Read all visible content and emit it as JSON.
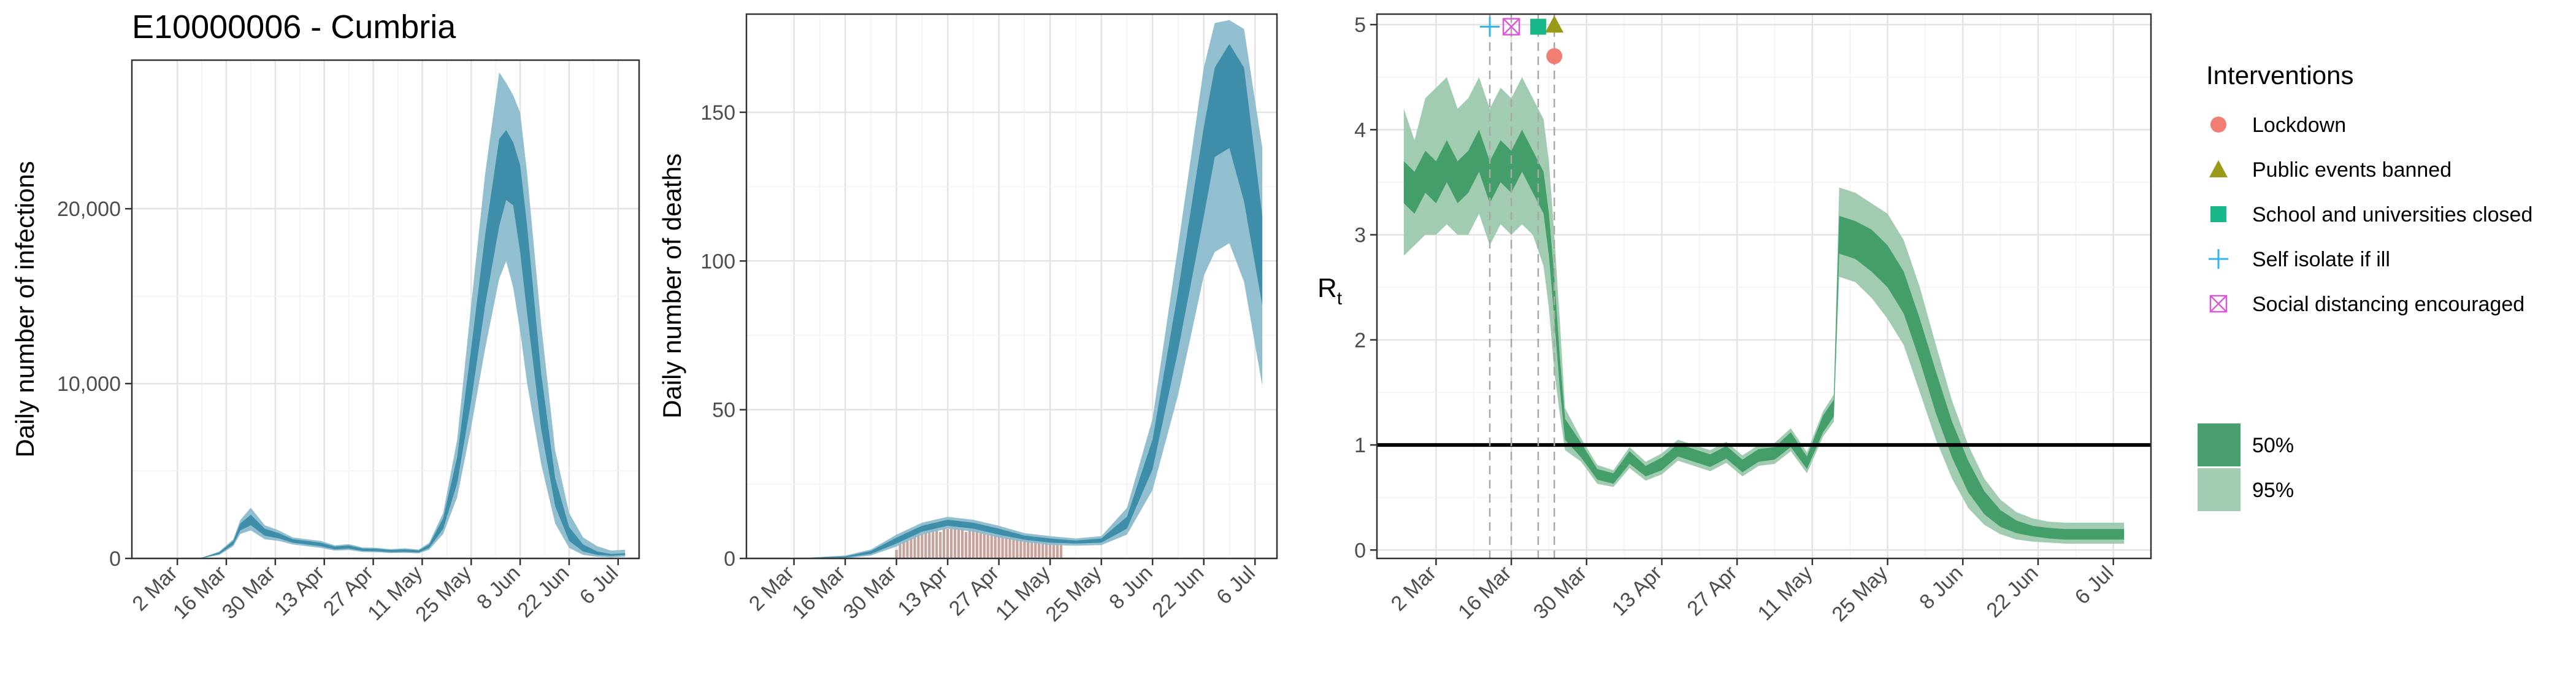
{
  "figure_title": "E10000006 - Cumbria",
  "colors": {
    "infections_dark": "#3a8aa6",
    "infections_light": "#8cbccd",
    "deaths_observed": "#c9a39b",
    "rt_dark": "#3f9b66",
    "rt_light": "#9cc9ad",
    "lockdown": "#f07e73",
    "public_events": "#9a9a18",
    "schools": "#18b88a",
    "self_isolate": "#33b5e5",
    "social_distancing": "#d85ad8"
  },
  "chart_data": [
    {
      "type": "area",
      "name": "infections",
      "ylabel": "Daily number of infections",
      "xlabel": "",
      "x_ticks": [
        "2 Mar",
        "16 Mar",
        "30 Mar",
        "13 Apr",
        "27 Apr",
        "11 May",
        "25 May",
        "8 Jun",
        "22 Jun",
        "6 Jul"
      ],
      "y_ticks": [
        "0",
        "10,000",
        "20,000"
      ],
      "ylim": [
        0,
        28500
      ],
      "grid": true,
      "x": [
        "2020-03-02",
        "2020-03-09",
        "2020-03-14",
        "2020-03-18",
        "2020-03-20",
        "2020-03-23",
        "2020-03-27",
        "2020-03-31",
        "2020-04-04",
        "2020-04-08",
        "2020-04-12",
        "2020-04-16",
        "2020-04-20",
        "2020-04-24",
        "2020-04-28",
        "2020-05-02",
        "2020-05-06",
        "2020-05-10",
        "2020-05-13",
        "2020-05-17",
        "2020-05-21",
        "2020-05-25",
        "2020-05-29",
        "2020-06-02",
        "2020-06-04",
        "2020-06-06",
        "2020-06-08",
        "2020-06-10",
        "2020-06-14",
        "2020-06-18",
        "2020-06-22",
        "2020-06-26",
        "2020-06-30",
        "2020-07-04",
        "2020-07-08"
      ],
      "median": [
        0,
        30,
        300,
        900,
        1800,
        2200,
        1500,
        1300,
        1000,
        900,
        800,
        600,
        650,
        500,
        480,
        420,
        450,
        400,
        700,
        2000,
        5000,
        10500,
        16500,
        21500,
        22500,
        22000,
        20000,
        16500,
        9000,
        3800,
        1400,
        600,
        300,
        200,
        250
      ],
      "ci50": [
        [
          0,
          0
        ],
        [
          20,
          40
        ],
        [
          250,
          350
        ],
        [
          800,
          1000
        ],
        [
          1600,
          2000
        ],
        [
          1900,
          2500
        ],
        [
          1300,
          1700
        ],
        [
          1150,
          1450
        ],
        [
          900,
          1100
        ],
        [
          800,
          1000
        ],
        [
          700,
          900
        ],
        [
          520,
          680
        ],
        [
          560,
          740
        ],
        [
          430,
          570
        ],
        [
          410,
          550
        ],
        [
          360,
          480
        ],
        [
          380,
          520
        ],
        [
          340,
          460
        ],
        [
          600,
          800
        ],
        [
          1700,
          2300
        ],
        [
          4300,
          5800
        ],
        [
          9000,
          12000
        ],
        [
          14500,
          18500
        ],
        [
          19000,
          24000
        ],
        [
          20500,
          24500
        ],
        [
          20200,
          23800
        ],
        [
          17500,
          22500
        ],
        [
          14000,
          19000
        ],
        [
          7400,
          10600
        ],
        [
          3000,
          4600
        ],
        [
          1000,
          1800
        ],
        [
          400,
          800
        ],
        [
          200,
          400
        ],
        [
          150,
          250
        ],
        [
          200,
          300
        ]
      ],
      "ci95": [
        [
          0,
          0
        ],
        [
          10,
          50
        ],
        [
          200,
          400
        ],
        [
          700,
          1100
        ],
        [
          1400,
          2200
        ],
        [
          1600,
          2900
        ],
        [
          1100,
          1900
        ],
        [
          1000,
          1600
        ],
        [
          800,
          1200
        ],
        [
          700,
          1100
        ],
        [
          600,
          1000
        ],
        [
          450,
          750
        ],
        [
          480,
          820
        ],
        [
          370,
          630
        ],
        [
          350,
          610
        ],
        [
          310,
          530
        ],
        [
          320,
          580
        ],
        [
          290,
          510
        ],
        [
          500,
          900
        ],
        [
          1400,
          2600
        ],
        [
          3500,
          6800
        ],
        [
          7500,
          14500
        ],
        [
          12000,
          22000
        ],
        [
          16000,
          27800
        ],
        [
          17000,
          27200
        ],
        [
          15500,
          26500
        ],
        [
          13000,
          25500
        ],
        [
          10000,
          22000
        ],
        [
          5400,
          13400
        ],
        [
          2000,
          6200
        ],
        [
          600,
          2600
        ],
        [
          200,
          1200
        ],
        [
          100,
          700
        ],
        [
          60,
          450
        ],
        [
          100,
          500
        ]
      ]
    },
    {
      "type": "area",
      "name": "deaths",
      "ylabel": "Daily number of deaths",
      "xlabel": "",
      "x_ticks": [
        "2 Mar",
        "16 Mar",
        "30 Mar",
        "13 Apr",
        "27 Apr",
        "11 May",
        "25 May",
        "8 Jun",
        "22 Jun",
        "6 Jul"
      ],
      "y_ticks": [
        "0",
        "50",
        "100",
        "150"
      ],
      "ylim": [
        0,
        183
      ],
      "grid": true,
      "x": [
        "2020-03-02",
        "2020-03-16",
        "2020-03-23",
        "2020-03-30",
        "2020-04-06",
        "2020-04-13",
        "2020-04-20",
        "2020-04-27",
        "2020-05-04",
        "2020-05-11",
        "2020-05-18",
        "2020-05-25",
        "2020-06-01",
        "2020-06-08",
        "2020-06-15",
        "2020-06-22",
        "2020-06-25",
        "2020-06-29",
        "2020-07-03",
        "2020-07-08"
      ],
      "median": [
        0,
        0.5,
        2,
        6,
        10,
        12,
        11,
        9,
        7,
        6,
        5.5,
        6,
        12,
        35,
        80,
        130,
        151,
        155,
        145,
        100
      ],
      "ci50": [
        [
          0,
          0
        ],
        [
          0.3,
          0.7
        ],
        [
          1.5,
          2.5
        ],
        [
          5,
          7
        ],
        [
          9,
          11
        ],
        [
          11,
          13
        ],
        [
          10,
          12
        ],
        [
          8,
          10
        ],
        [
          6.3,
          7.7
        ],
        [
          5.3,
          6.7
        ],
        [
          5,
          6
        ],
        [
          5.3,
          6.7
        ],
        [
          10,
          14
        ],
        [
          30,
          40
        ],
        [
          70,
          90
        ],
        [
          115,
          145
        ],
        [
          135,
          165
        ],
        [
          138,
          173
        ],
        [
          120,
          165
        ],
        [
          85,
          115
        ]
      ],
      "ci95": [
        [
          0,
          0
        ],
        [
          0,
          1
        ],
        [
          1,
          3
        ],
        [
          4,
          8
        ],
        [
          8,
          12
        ],
        [
          10,
          14
        ],
        [
          9,
          13
        ],
        [
          7,
          11
        ],
        [
          5.5,
          8.5
        ],
        [
          4.5,
          7.5
        ],
        [
          4.3,
          6.7
        ],
        [
          4.5,
          7.5
        ],
        [
          8,
          17
        ],
        [
          23,
          47
        ],
        [
          55,
          105
        ],
        [
          95,
          165
        ],
        [
          103,
          180
        ],
        [
          106,
          181
        ],
        [
          93,
          178
        ],
        [
          58,
          138
        ]
      ],
      "observed_x": [
        "2020-03-30",
        "2020-03-31",
        "2020-04-01",
        "2020-04-02",
        "2020-04-03",
        "2020-04-04",
        "2020-04-05",
        "2020-04-06",
        "2020-04-07",
        "2020-04-08",
        "2020-04-09",
        "2020-04-10",
        "2020-04-11",
        "2020-04-12",
        "2020-04-13",
        "2020-04-14",
        "2020-04-15",
        "2020-04-16",
        "2020-04-17",
        "2020-04-18",
        "2020-04-19",
        "2020-04-20",
        "2020-04-21",
        "2020-04-22",
        "2020-04-23",
        "2020-04-24",
        "2020-04-25",
        "2020-04-26",
        "2020-04-27",
        "2020-04-28",
        "2020-04-29",
        "2020-04-30",
        "2020-05-01",
        "2020-05-02",
        "2020-05-03",
        "2020-05-04",
        "2020-05-05",
        "2020-05-06",
        "2020-05-07",
        "2020-05-08",
        "2020-05-09",
        "2020-05-10",
        "2020-05-11",
        "2020-05-12",
        "2020-05-13",
        "2020-05-14"
      ],
      "observed": [
        3,
        5,
        6,
        7,
        7,
        8,
        9,
        10,
        10,
        10,
        11,
        10,
        9,
        11,
        10,
        10,
        11,
        12,
        10,
        9,
        10,
        11,
        10,
        9,
        10,
        8,
        9,
        9,
        8,
        8,
        9,
        8,
        7,
        8,
        7,
        7,
        8,
        6,
        7,
        6,
        7,
        6,
        7,
        7,
        6,
        6
      ]
    },
    {
      "type": "area",
      "name": "rt",
      "ylabel": "R",
      "ylabel_sub": "t",
      "xlabel": "",
      "x_ticks": [
        "2 Mar",
        "16 Mar",
        "30 Mar",
        "13 Apr",
        "27 Apr",
        "11 May",
        "25 May",
        "8 Jun",
        "22 Jun",
        "6 Jul"
      ],
      "y_ticks": [
        "0",
        "1",
        "2",
        "3",
        "4",
        "5"
      ],
      "ylim": [
        -0.08,
        5.1
      ],
      "grid": true,
      "reference_line": 1,
      "x": [
        "2020-02-25",
        "2020-02-27",
        "2020-02-29",
        "2020-03-02",
        "2020-03-04",
        "2020-03-06",
        "2020-03-08",
        "2020-03-10",
        "2020-03-12",
        "2020-03-14",
        "2020-03-16",
        "2020-03-18",
        "2020-03-20",
        "2020-03-22",
        "2020-03-23",
        "2020-03-24",
        "2020-03-25",
        "2020-03-26",
        "2020-03-29",
        "2020-04-01",
        "2020-04-04",
        "2020-04-07",
        "2020-04-10",
        "2020-04-13",
        "2020-04-16",
        "2020-04-19",
        "2020-04-22",
        "2020-04-25",
        "2020-04-28",
        "2020-05-01",
        "2020-05-04",
        "2020-05-07",
        "2020-05-10",
        "2020-05-13",
        "2020-05-15",
        "2020-05-16",
        "2020-05-19",
        "2020-05-22",
        "2020-05-25",
        "2020-05-28",
        "2020-05-31",
        "2020-06-03",
        "2020-06-06",
        "2020-06-09",
        "2020-06-12",
        "2020-06-15",
        "2020-06-18",
        "2020-06-21",
        "2020-06-24",
        "2020-06-27",
        "2020-06-30",
        "2020-07-03",
        "2020-07-08"
      ],
      "median": [
        3.5,
        3.4,
        3.6,
        3.5,
        3.7,
        3.5,
        3.6,
        3.8,
        3.5,
        3.7,
        3.6,
        3.8,
        3.6,
        3.4,
        3.0,
        2.4,
        1.7,
        1.15,
        0.95,
        0.72,
        0.68,
        0.88,
        0.75,
        0.82,
        0.95,
        0.9,
        0.85,
        0.93,
        0.8,
        0.9,
        0.92,
        1.05,
        0.83,
        1.2,
        1.35,
        3.0,
        2.95,
        2.85,
        2.7,
        2.45,
        2.0,
        1.5,
        1.05,
        0.7,
        0.45,
        0.3,
        0.22,
        0.18,
        0.16,
        0.15,
        0.15,
        0.15,
        0.15
      ],
      "ci50": [
        [
          3.3,
          3.7
        ],
        [
          3.2,
          3.6
        ],
        [
          3.4,
          3.8
        ],
        [
          3.3,
          3.7
        ],
        [
          3.5,
          3.9
        ],
        [
          3.3,
          3.7
        ],
        [
          3.4,
          3.8
        ],
        [
          3.6,
          4.0
        ],
        [
          3.3,
          3.7
        ],
        [
          3.5,
          3.9
        ],
        [
          3.4,
          3.8
        ],
        [
          3.6,
          4.0
        ],
        [
          3.4,
          3.8
        ],
        [
          3.2,
          3.6
        ],
        [
          2.8,
          3.2
        ],
        [
          2.2,
          2.6
        ],
        [
          1.55,
          1.85
        ],
        [
          1.05,
          1.25
        ],
        [
          0.88,
          1.02
        ],
        [
          0.67,
          0.77
        ],
        [
          0.63,
          0.73
        ],
        [
          0.82,
          0.94
        ],
        [
          0.7,
          0.8
        ],
        [
          0.76,
          0.88
        ],
        [
          0.89,
          1.01
        ],
        [
          0.84,
          0.96
        ],
        [
          0.79,
          0.91
        ],
        [
          0.87,
          0.99
        ],
        [
          0.74,
          0.86
        ],
        [
          0.84,
          0.96
        ],
        [
          0.86,
          0.98
        ],
        [
          0.98,
          1.12
        ],
        [
          0.77,
          0.89
        ],
        [
          1.12,
          1.28
        ],
        [
          1.27,
          1.43
        ],
        [
          2.82,
          3.18
        ],
        [
          2.77,
          3.13
        ],
        [
          2.65,
          3.05
        ],
        [
          2.5,
          2.9
        ],
        [
          2.25,
          2.65
        ],
        [
          1.8,
          2.2
        ],
        [
          1.3,
          1.7
        ],
        [
          0.88,
          1.22
        ],
        [
          0.55,
          0.85
        ],
        [
          0.34,
          0.56
        ],
        [
          0.22,
          0.38
        ],
        [
          0.16,
          0.28
        ],
        [
          0.13,
          0.23
        ],
        [
          0.11,
          0.21
        ],
        [
          0.1,
          0.2
        ],
        [
          0.1,
          0.2
        ],
        [
          0.1,
          0.2
        ],
        [
          0.1,
          0.2
        ]
      ],
      "ci95": [
        [
          2.8,
          4.2
        ],
        [
          2.9,
          3.9
        ],
        [
          3.0,
          4.3
        ],
        [
          3.0,
          4.4
        ],
        [
          3.1,
          4.5
        ],
        [
          3.0,
          4.2
        ],
        [
          3.0,
          4.3
        ],
        [
          3.2,
          4.5
        ],
        [
          2.9,
          4.2
        ],
        [
          3.1,
          4.4
        ],
        [
          3.0,
          4.3
        ],
        [
          3.1,
          4.5
        ],
        [
          3.0,
          4.3
        ],
        [
          2.7,
          4.1
        ],
        [
          2.3,
          3.7
        ],
        [
          1.7,
          3.0
        ],
        [
          1.3,
          2.2
        ],
        [
          0.95,
          1.35
        ],
        [
          0.84,
          1.06
        ],
        [
          0.63,
          0.81
        ],
        [
          0.6,
          0.76
        ],
        [
          0.78,
          0.98
        ],
        [
          0.66,
          0.84
        ],
        [
          0.72,
          0.92
        ],
        [
          0.85,
          1.05
        ],
        [
          0.8,
          1.0
        ],
        [
          0.75,
          0.95
        ],
        [
          0.83,
          1.03
        ],
        [
          0.7,
          0.9
        ],
        [
          0.8,
          1.0
        ],
        [
          0.82,
          1.02
        ],
        [
          0.94,
          1.16
        ],
        [
          0.73,
          0.93
        ],
        [
          1.08,
          1.32
        ],
        [
          1.22,
          1.48
        ],
        [
          2.6,
          3.45
        ],
        [
          2.55,
          3.4
        ],
        [
          2.4,
          3.3
        ],
        [
          2.2,
          3.2
        ],
        [
          1.95,
          2.95
        ],
        [
          1.5,
          2.5
        ],
        [
          1.05,
          1.95
        ],
        [
          0.68,
          1.42
        ],
        [
          0.4,
          1.0
        ],
        [
          0.24,
          0.68
        ],
        [
          0.15,
          0.48
        ],
        [
          0.1,
          0.36
        ],
        [
          0.08,
          0.3
        ],
        [
          0.07,
          0.27
        ],
        [
          0.06,
          0.26
        ],
        [
          0.06,
          0.26
        ],
        [
          0.06,
          0.26
        ],
        [
          0.06,
          0.26
        ]
      ],
      "interventions": [
        {
          "label": "Lockdown",
          "date": "2020-03-24",
          "value": 4.7,
          "symbol": "circle",
          "color": "#f07e73"
        },
        {
          "label": "Public events banned",
          "date": "2020-03-24",
          "value": 5.0,
          "symbol": "triangle",
          "color": "#9a9a18"
        },
        {
          "label": "School and universities closed",
          "date": "2020-03-21",
          "value": 4.98,
          "symbol": "square",
          "color": "#18b88a"
        },
        {
          "label": "Self isolate if ill",
          "date": "2020-03-12",
          "value": 4.98,
          "symbol": "plus",
          "color": "#33b5e5"
        },
        {
          "label": "Social distancing encouraged",
          "date": "2020-03-16",
          "value": 4.98,
          "symbol": "boxcross",
          "color": "#d85ad8"
        }
      ]
    }
  ],
  "legend": {
    "interventions_title": "Interventions",
    "intervention_labels": [
      "Lockdown",
      "Public events banned",
      "School and universities closed",
      "Self isolate if ill",
      "Social distancing encouraged"
    ],
    "ci_labels": [
      "50%",
      "95%"
    ]
  }
}
